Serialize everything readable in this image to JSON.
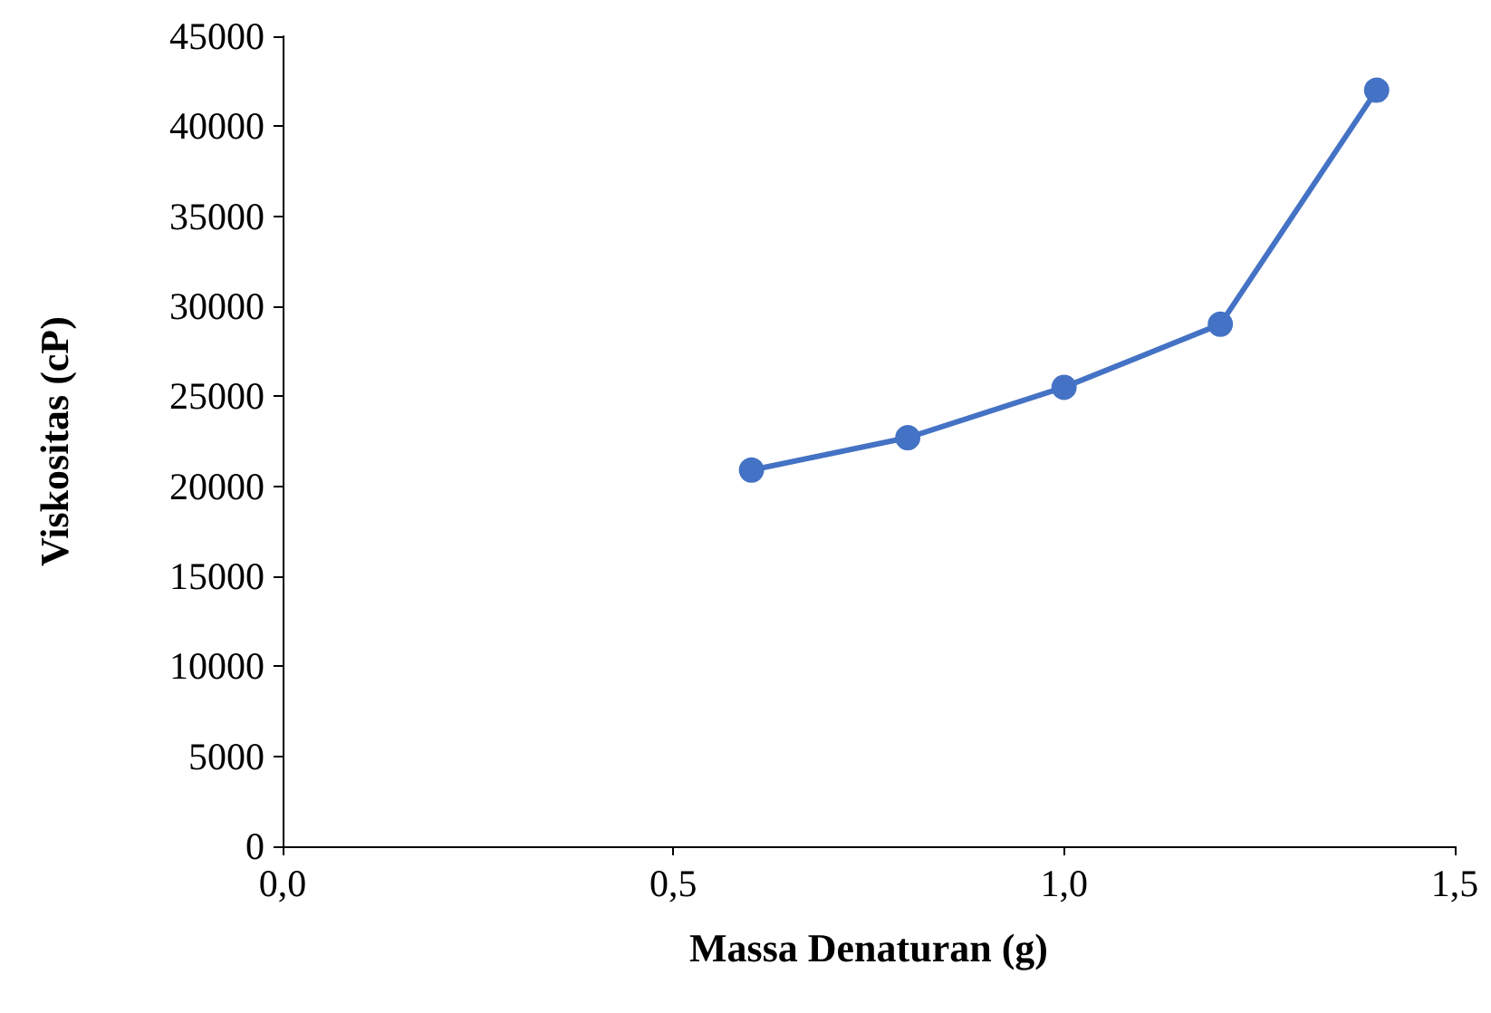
{
  "chart_data": {
    "type": "line",
    "xlabel": "Massa Denaturan (g)",
    "ylabel": "Viskositas (cP)",
    "x": [
      0.6,
      0.8,
      1.0,
      1.2,
      1.4
    ],
    "series": [
      {
        "color": "#4472c4",
        "values": [
          20900,
          22700,
          25500,
          29000,
          42000
        ]
      }
    ],
    "xlim": [
      0,
      1.5
    ],
    "xticks": [
      {
        "value": 0,
        "label": "0,0"
      },
      {
        "value": 0.5,
        "label": "0,5"
      },
      {
        "value": 1,
        "label": "1,0"
      },
      {
        "value": 1.5,
        "label": "1,5"
      }
    ],
    "ylim": [
      0,
      45000
    ],
    "yticks": [
      0,
      5000,
      10000,
      15000,
      20000,
      25000,
      30000,
      35000,
      40000,
      45000
    ],
    "grid": false,
    "marker": "circle",
    "line_style": "solid"
  }
}
